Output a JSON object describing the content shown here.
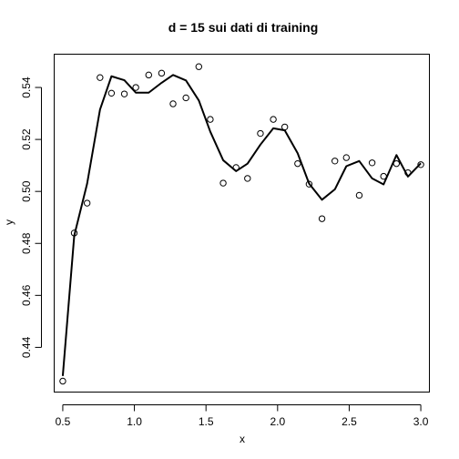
{
  "chart_data": {
    "type": "scatter",
    "title": "d = 15 sui dati di training",
    "xlabel": "x",
    "ylabel": "y",
    "xlim": [
      0.44,
      3.06
    ],
    "ylim": [
      0.4228,
      0.5528
    ],
    "xticks": [
      0.5,
      1.0,
      1.5,
      2.0,
      2.5,
      3.0
    ],
    "xtick_labels": [
      "0.5",
      "1.0",
      "1.5",
      "2.0",
      "2.5",
      "3.0"
    ],
    "yticks": [
      0.44,
      0.46,
      0.48,
      0.5,
      0.52,
      0.54
    ],
    "ytick_labels": [
      "0.44",
      "0.46",
      "0.48",
      "0.50",
      "0.52",
      "0.54"
    ],
    "grid": false,
    "series": [
      {
        "kind": "points",
        "marker": "open-circle",
        "x": [
          0.5,
          0.58,
          0.67,
          0.76,
          0.84,
          0.93,
          1.01,
          1.1,
          1.19,
          1.27,
          1.36,
          1.45,
          1.53,
          1.62,
          1.71,
          1.79,
          1.88,
          1.97,
          2.05,
          2.14,
          2.22,
          2.31,
          2.4,
          2.48,
          2.57,
          2.66,
          2.74,
          2.83,
          2.91,
          3.0
        ],
        "y": [
          0.427,
          0.484,
          0.4955,
          0.5438,
          0.5378,
          0.5375,
          0.54,
          0.5448,
          0.5455,
          0.5337,
          0.536,
          0.548,
          0.5277,
          0.5032,
          0.5092,
          0.505,
          0.5223,
          0.5277,
          0.5248,
          0.5107,
          0.5028,
          0.4895,
          0.5117,
          0.513,
          0.4985,
          0.511,
          0.5058,
          0.5107,
          0.5072,
          0.5103
        ]
      },
      {
        "kind": "line",
        "x": [
          0.5,
          0.58,
          0.67,
          0.76,
          0.84,
          0.93,
          1.01,
          1.1,
          1.19,
          1.27,
          1.36,
          1.45,
          1.53,
          1.62,
          1.71,
          1.79,
          1.88,
          1.97,
          2.05,
          2.14,
          2.22,
          2.31,
          2.4,
          2.48,
          2.57,
          2.66,
          2.74,
          2.83,
          2.91,
          3.0
        ],
        "y": [
          0.429,
          0.483,
          0.503,
          0.5315,
          0.5443,
          0.5428,
          0.538,
          0.538,
          0.5418,
          0.5448,
          0.5427,
          0.535,
          0.523,
          0.512,
          0.5078,
          0.5107,
          0.518,
          0.5243,
          0.5235,
          0.5147,
          0.503,
          0.4968,
          0.5008,
          0.5097,
          0.5117,
          0.505,
          0.5027,
          0.514,
          0.5057,
          0.5108
        ]
      }
    ]
  }
}
